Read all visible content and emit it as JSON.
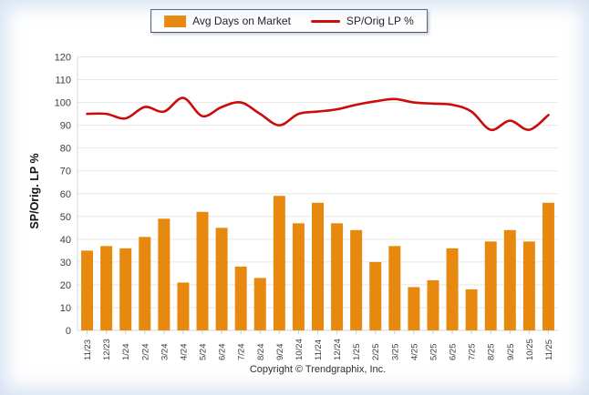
{
  "legend": {
    "series": [
      {
        "label": "Avg Days on Market",
        "type": "bar",
        "color": "#E8890F"
      },
      {
        "label": "SP/Orig LP %",
        "type": "line",
        "color": "#CC0B0B"
      }
    ]
  },
  "y_axis": {
    "title": "SP/Orig. LP %"
  },
  "footer": {
    "copyright": "Copyright © Trendgraphix, Inc."
  },
  "colors": {
    "bar": "#E8890F",
    "line": "#CC0B0B",
    "grid": "#e7e7e7",
    "axis": "#d6d6d6",
    "tick_text": "#3d3d3d",
    "edge_tint": "#b0c7e6"
  },
  "chart_data": {
    "type": "bar",
    "title": "",
    "xlabel": "",
    "ylabel": "SP/Orig. LP %",
    "ylim": [
      0,
      120
    ],
    "ytick_step": 10,
    "grid": true,
    "legend_position": "top-center",
    "categories": [
      "11/23",
      "12/23",
      "1/24",
      "2/24",
      "3/24",
      "4/24",
      "5/24",
      "6/24",
      "7/24",
      "8/24",
      "9/24",
      "10/24",
      "11/24",
      "12/24",
      "1/25",
      "2/25",
      "3/25",
      "4/25",
      "5/25",
      "6/25",
      "7/25",
      "8/25",
      "9/25",
      "10/25",
      "11/25"
    ],
    "series": [
      {
        "name": "Avg Days on Market",
        "type": "bar",
        "color": "#E8890F",
        "values": [
          35,
          37,
          36,
          41,
          49,
          21,
          52,
          45,
          28,
          23,
          59,
          47,
          56,
          47,
          44,
          30,
          37,
          19,
          22,
          36,
          18,
          39,
          44,
          39,
          56
        ]
      },
      {
        "name": "SP/Orig LP %",
        "type": "line",
        "color": "#CC0B0B",
        "values": [
          95,
          95,
          93,
          98,
          96,
          102,
          94,
          98,
          100,
          95,
          90,
          95,
          96,
          97,
          99,
          100.5,
          101.5,
          100,
          99.5,
          99,
          96,
          88,
          92,
          88,
          94.5
        ]
      }
    ]
  }
}
